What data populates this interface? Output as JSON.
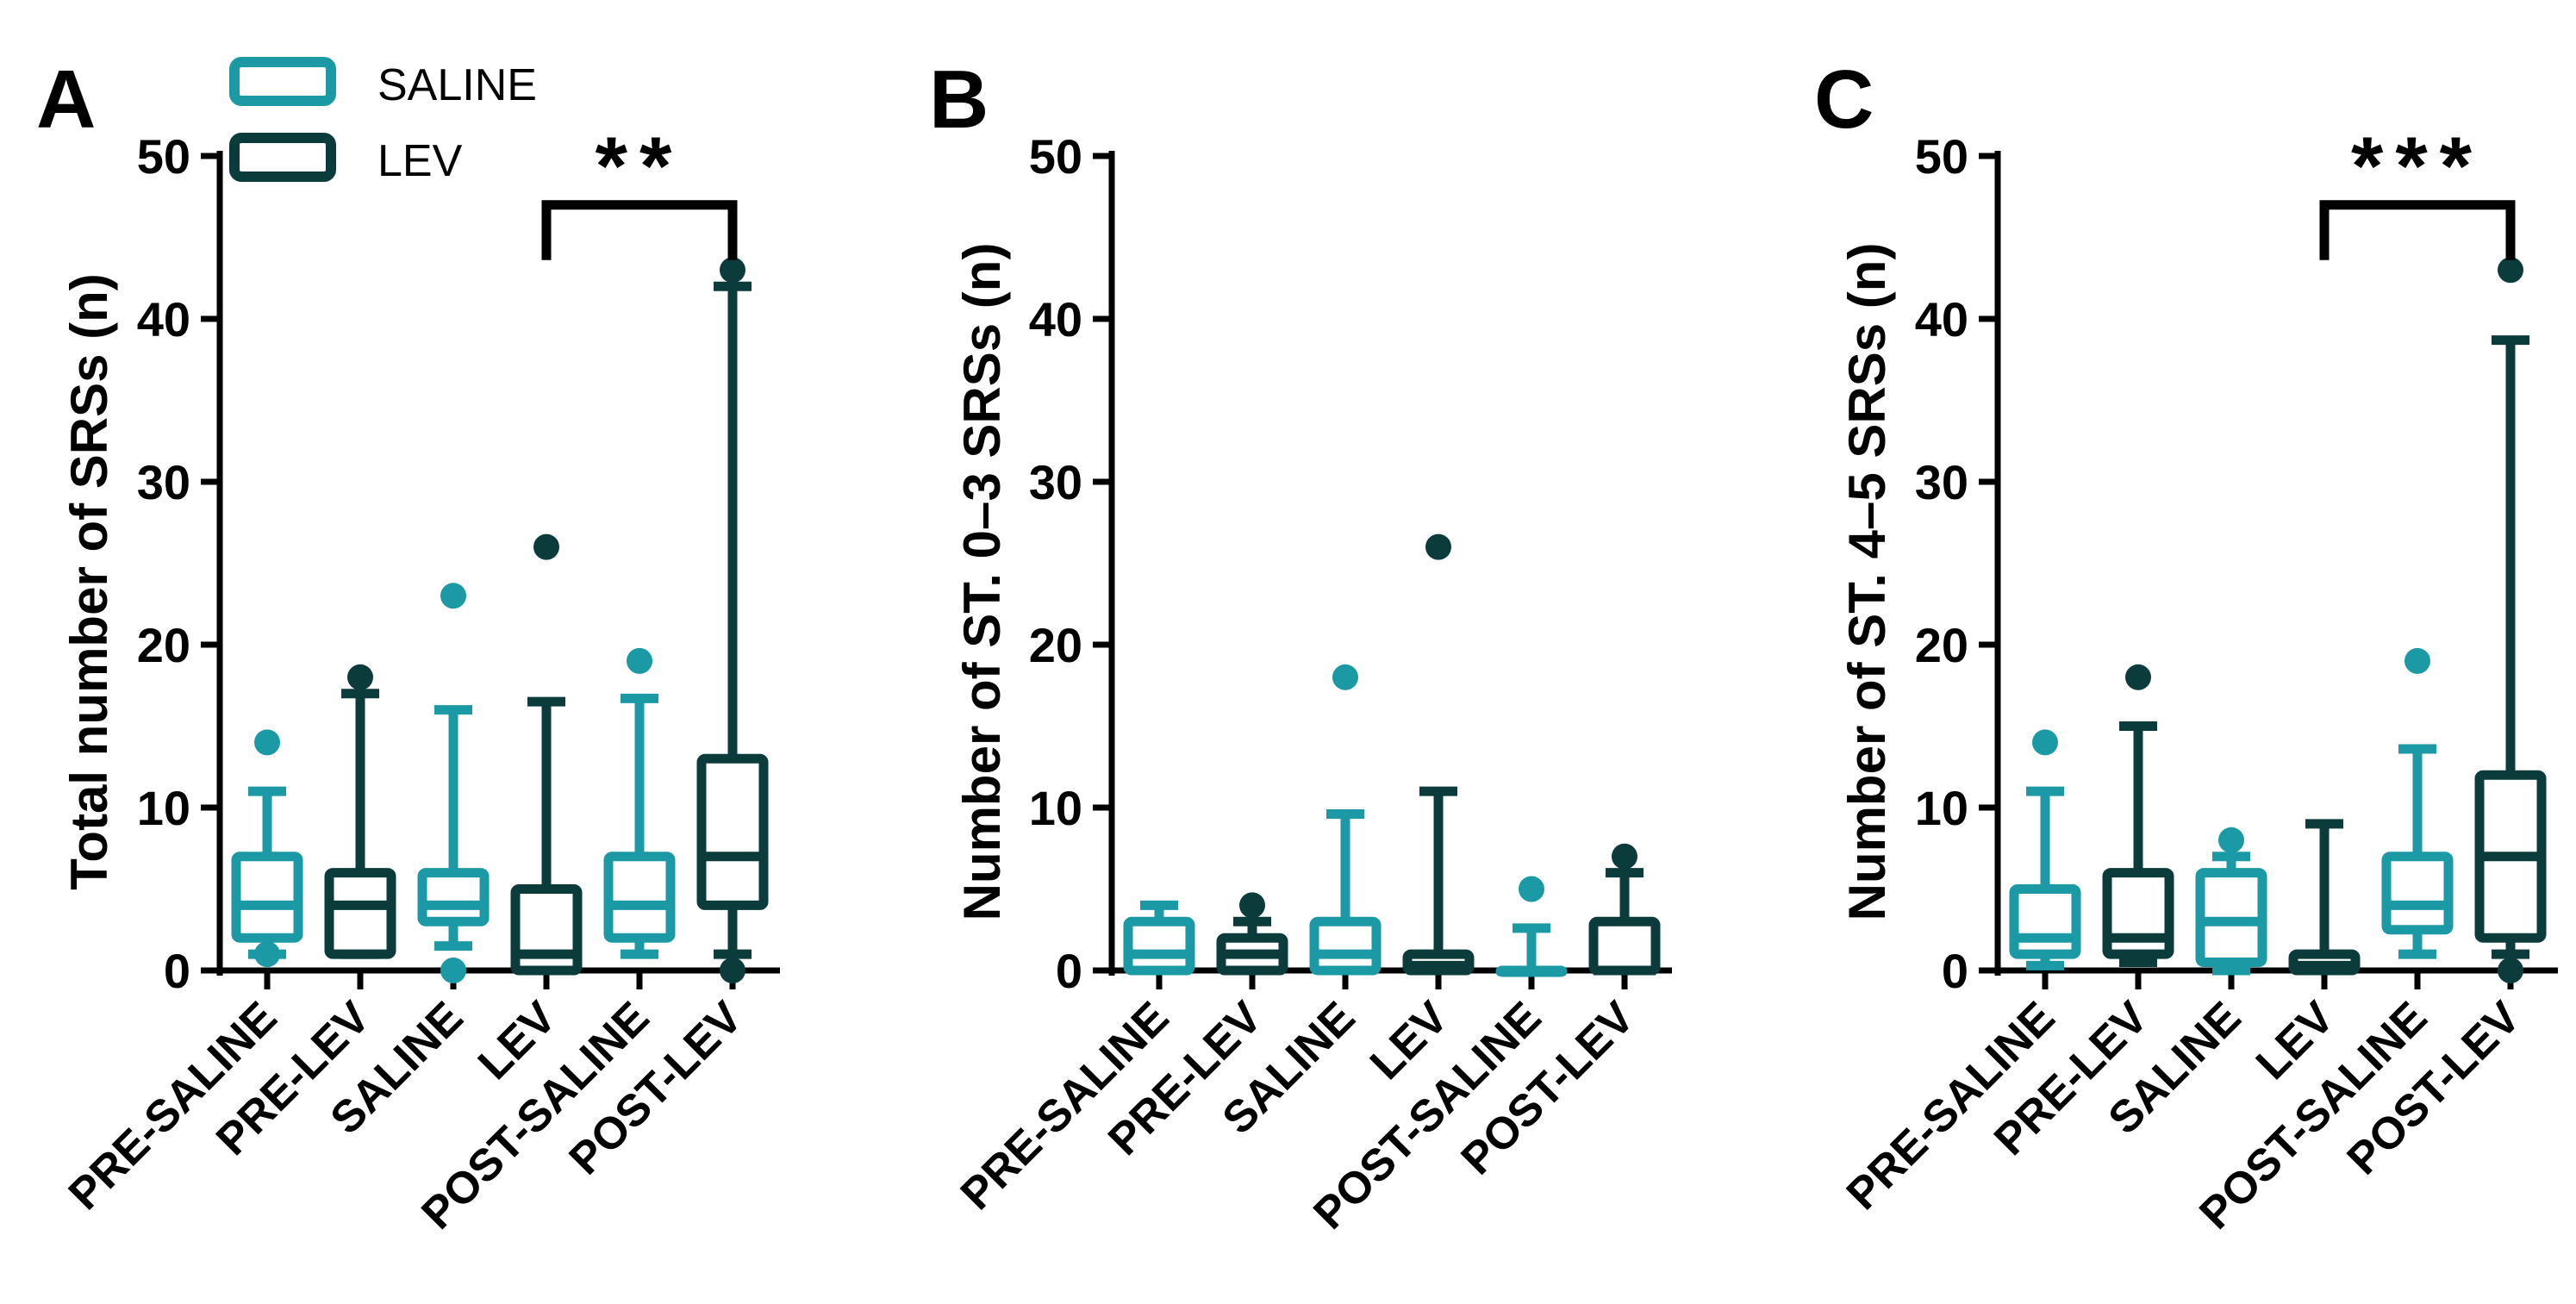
{
  "colors": {
    "saline": "#1b9aa6",
    "lev": "#0c3b3c",
    "axis": "#000000"
  },
  "legend": {
    "items": [
      {
        "label": "SALINE",
        "color": "#1b9aa6"
      },
      {
        "label": "LEV",
        "color": "#0c3b3c"
      }
    ]
  },
  "chart_data": [
    {
      "type": "box",
      "panel_label": "A",
      "ylabel": "Total number of SRSs (n)",
      "ylim": [
        0,
        50
      ],
      "yticks": [
        "0",
        "10",
        "20",
        "30",
        "40",
        "50"
      ],
      "categories": [
        "PRE-SALINE",
        "PRE-LEV",
        "SALINE",
        "LEV",
        "POST-SALINE",
        "POST-LEV"
      ],
      "groups": [
        "saline",
        "lev",
        "saline",
        "lev",
        "saline",
        "lev"
      ],
      "boxes": [
        {
          "whisker_low": 1,
          "q1": 2,
          "median": 4,
          "q3": 7,
          "whisker_high": 11,
          "outliers": [
            14,
            1
          ]
        },
        {
          "whisker_low": 1,
          "q1": 1,
          "median": 4,
          "q3": 6,
          "whisker_high": 17,
          "outliers": [
            18
          ]
        },
        {
          "whisker_low": 1.5,
          "q1": 3,
          "median": 4,
          "q3": 6,
          "whisker_high": 16,
          "outliers": [
            23,
            0
          ]
        },
        {
          "whisker_low": 0,
          "q1": 0,
          "median": 1,
          "q3": 5,
          "whisker_high": 16.5,
          "outliers": [
            26
          ]
        },
        {
          "whisker_low": 1,
          "q1": 2,
          "median": 4,
          "q3": 7,
          "whisker_high": 16.7,
          "outliers": [
            19
          ]
        },
        {
          "whisker_low": 1,
          "q1": 4,
          "median": 7,
          "q3": 13,
          "whisker_high": 42,
          "outliers": [
            43,
            0
          ]
        }
      ],
      "significance": {
        "from": "LEV",
        "to": "POST-LEV",
        "bracket_y": 47,
        "label": "**"
      }
    },
    {
      "type": "box",
      "panel_label": "B",
      "ylabel": "Number of ST. 0–3 SRSs (n)",
      "ylim": [
        0,
        50
      ],
      "yticks": [
        "0",
        "10",
        "20",
        "30",
        "40",
        "50"
      ],
      "categories": [
        "PRE-SALINE",
        "PRE-LEV",
        "SALINE",
        "LEV",
        "POST-SALINE",
        "POST-LEV"
      ],
      "groups": [
        "saline",
        "lev",
        "saline",
        "lev",
        "saline",
        "lev"
      ],
      "boxes": [
        {
          "whisker_low": 0,
          "q1": 0,
          "median": 1,
          "q3": 3,
          "whisker_high": 4,
          "outliers": []
        },
        {
          "whisker_low": 0,
          "q1": 0,
          "median": 1,
          "q3": 2,
          "whisker_high": 3,
          "outliers": [
            4
          ]
        },
        {
          "whisker_low": 0,
          "q1": 0,
          "median": 1,
          "q3": 3,
          "whisker_high": 9.6,
          "outliers": [
            18
          ]
        },
        {
          "whisker_low": 0,
          "q1": 0,
          "median": 0.3,
          "q3": 1,
          "whisker_high": 11,
          "outliers": [
            26
          ]
        },
        {
          "whisker_low": 0,
          "q1": 0,
          "median": 0,
          "q3": 0,
          "whisker_high": 2.6,
          "outliers": [
            5
          ]
        },
        {
          "whisker_low": 0,
          "q1": 0,
          "median": 0,
          "q3": 3,
          "whisker_high": 6,
          "outliers": [
            7
          ]
        }
      ]
    },
    {
      "type": "box",
      "panel_label": "C",
      "ylabel": "Number of ST. 4–5 SRSs (n)",
      "ylim": [
        0,
        50
      ],
      "yticks": [
        "0",
        "10",
        "20",
        "30",
        "40",
        "50"
      ],
      "categories": [
        "PRE-SALINE",
        "PRE-LEV",
        "SALINE",
        "LEV",
        "POST-SALINE",
        "POST-LEV"
      ],
      "groups": [
        "saline",
        "lev",
        "saline",
        "lev",
        "saline",
        "lev"
      ],
      "boxes": [
        {
          "whisker_low": 0.3,
          "q1": 1,
          "median": 2,
          "q3": 5,
          "whisker_high": 11,
          "outliers": [
            14
          ]
        },
        {
          "whisker_low": 0.5,
          "q1": 1,
          "median": 2,
          "q3": 6,
          "whisker_high": 15,
          "outliers": [
            18
          ]
        },
        {
          "whisker_low": 0,
          "q1": 0.5,
          "median": 3,
          "q3": 6,
          "whisker_high": 7,
          "outliers": [
            8
          ]
        },
        {
          "whisker_low": 0,
          "q1": 0,
          "median": 0.3,
          "q3": 1,
          "whisker_high": 9,
          "outliers": []
        },
        {
          "whisker_low": 1,
          "q1": 2.5,
          "median": 4,
          "q3": 7,
          "whisker_high": 13.6,
          "outliers": [
            19
          ]
        },
        {
          "whisker_low": 1,
          "q1": 2,
          "median": 7,
          "q3": 12,
          "whisker_high": 38.7,
          "outliers": [
            43,
            0
          ]
        }
      ],
      "significance": {
        "from": "LEV",
        "to": "POST-LEV",
        "bracket_y": 47,
        "label": "***"
      }
    }
  ]
}
